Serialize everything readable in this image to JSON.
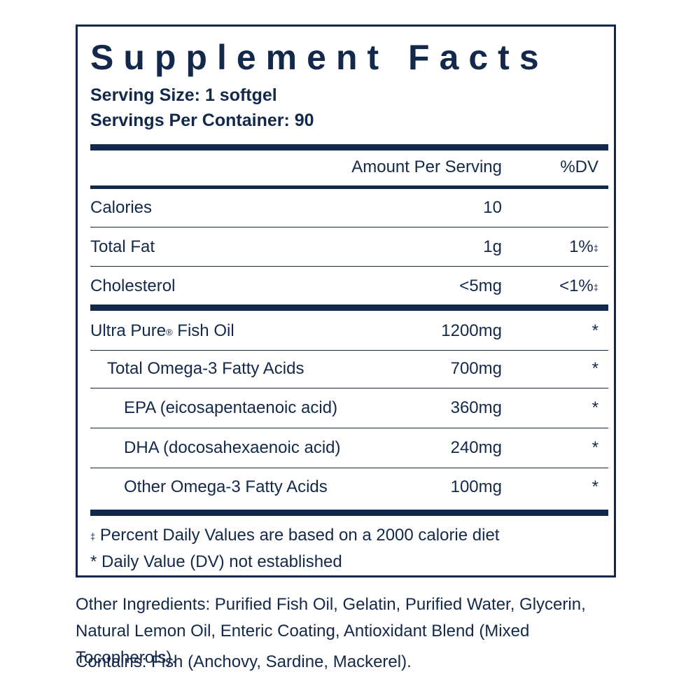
{
  "panel": {
    "title": "Supplement Facts",
    "serving_size": "Serving Size: 1 softgel",
    "servings_per_container": "Servings Per Container: 90",
    "header": {
      "amount": "Amount Per Serving",
      "dv": "%DV"
    },
    "rows_top": [
      {
        "name": "Calories",
        "amount": "10",
        "dv": ""
      },
      {
        "name": "Total Fat",
        "amount": "1g",
        "dv": "1%",
        "dv_mark": "‡"
      },
      {
        "name": "Cholesterol",
        "amount": "<5mg",
        "dv": "<1%",
        "dv_mark": "‡"
      }
    ],
    "rows_bottom": [
      {
        "name": "Ultra Pure",
        "name_mark": "®",
        "name_suffix": " Fish Oil",
        "amount": "1200mg",
        "dv": "*"
      },
      {
        "name": "Total Omega-3 Fatty Acids",
        "amount": "700mg",
        "dv": "*"
      },
      {
        "name": "EPA (eicosapentaenoic acid)",
        "amount": "360mg",
        "dv": "*"
      },
      {
        "name": "DHA (docosahexaenoic acid)",
        "amount": "240mg",
        "dv": "*"
      },
      {
        "name": "Other Omega-3 Fatty Acids",
        "amount": "100mg",
        "dv": "*"
      }
    ],
    "footnotes": {
      "percent_mark": "‡",
      "percent_text": " Percent Daily Values are based on a 2000 calorie diet",
      "dv_not_established": "* Daily Value (DV) not established"
    }
  },
  "other_ingredients": "Other Ingredients: Purified Fish Oil, Gelatin, Purified Water, Glycerin, Natural Lemon Oil, Enteric Coating, Antioxidant Blend (Mixed Tocopherols).",
  "contains": "Contains: Fish (Anchovy, Sardine, Mackerel).",
  "colors": {
    "ink": "#13294b",
    "background": "#ffffff"
  }
}
